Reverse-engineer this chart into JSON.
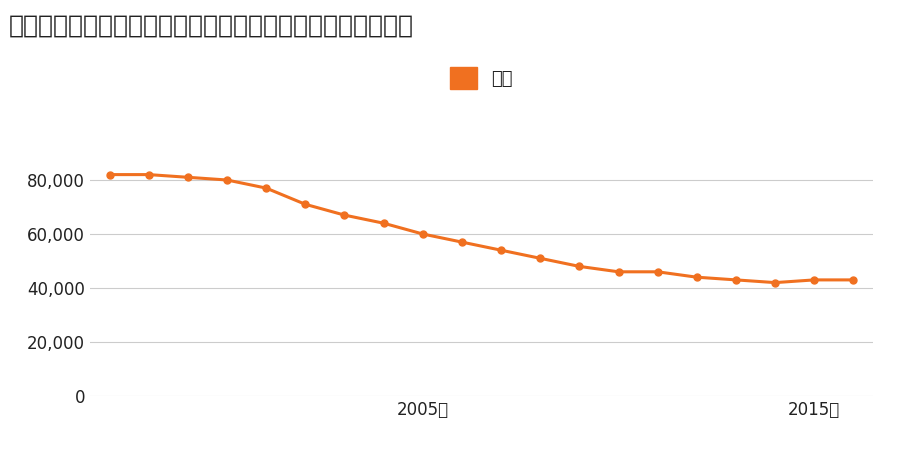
{
  "title": "広島県東広島市八本松飯田８丁目１０４４番１５の地価推移",
  "legend_label": "価格",
  "years": [
    1997,
    1998,
    1999,
    2000,
    2001,
    2002,
    2003,
    2004,
    2005,
    2006,
    2007,
    2008,
    2009,
    2010,
    2011,
    2012,
    2013,
    2014,
    2015,
    2016
  ],
  "values": [
    82000,
    82000,
    81000,
    80000,
    77000,
    71000,
    67000,
    64000,
    60000,
    57000,
    54000,
    51000,
    48000,
    46000,
    46000,
    44000,
    43000,
    42000,
    43000,
    43000
  ],
  "line_color": "#f07020",
  "marker_color": "#f07020",
  "background_color": "#ffffff",
  "grid_color": "#cccccc",
  "text_color": "#222222",
  "ylim": [
    0,
    100000
  ],
  "yticks": [
    0,
    20000,
    40000,
    60000,
    80000
  ],
  "xtick_years": [
    2005,
    2015
  ],
  "title_fontsize": 18,
  "legend_fontsize": 13,
  "tick_fontsize": 12
}
